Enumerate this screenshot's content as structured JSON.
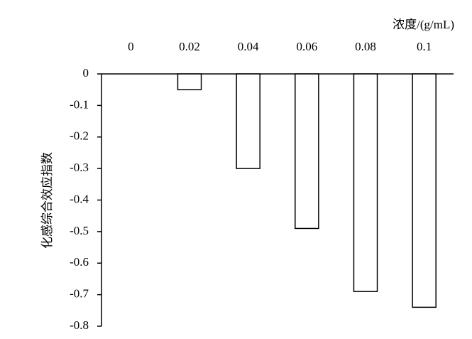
{
  "chart_data": {
    "type": "bar",
    "x_label": "浓度/(g/mL)",
    "y_label": "化感综合效应指数",
    "categories": [
      "0",
      "0.02",
      "0.04",
      "0.06",
      "0.08",
      "0.1"
    ],
    "values": [
      0,
      -0.05,
      -0.3,
      -0.49,
      -0.69,
      -0.74
    ],
    "color": "#ffffff",
    "ylim": [
      -0.8,
      0
    ],
    "yticks": [
      0,
      -0.1,
      -0.2,
      -0.3,
      -0.4,
      -0.5,
      -0.6,
      -0.7,
      -0.8
    ],
    "grid": false
  }
}
